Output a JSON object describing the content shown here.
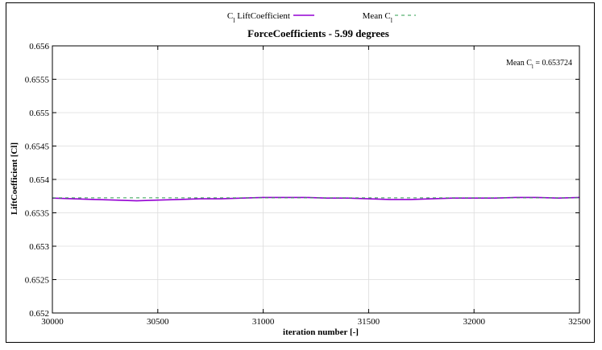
{
  "chart_data": {
    "type": "line",
    "title": "ForceCoefficients - 5.99 degrees",
    "xlabel": "iteration number [-]",
    "ylabel": "LiftCoefficient [Cl]",
    "xlim": [
      30000,
      32500
    ],
    "ylim": [
      0.652,
      0.656
    ],
    "grid": true,
    "legend_position": "top-center",
    "x_ticks": [
      "30000",
      "30500",
      "31000",
      "31500",
      "32000",
      "32500"
    ],
    "y_ticks": [
      "0.652",
      "0.6525",
      "0.653",
      "0.6535",
      "0.654",
      "0.6545",
      "0.655",
      "0.6555",
      "0.656"
    ],
    "series": [
      {
        "name": "C_l LiftCoefficient",
        "legend_main": "C",
        "legend_sub": "l",
        "legend_rest": " LiftCoefficient",
        "color": "#9400d3",
        "style": "solid",
        "x": [
          30000,
          30100,
          30200,
          30300,
          30400,
          30500,
          30600,
          30700,
          30800,
          30900,
          31000,
          31100,
          31200,
          31300,
          31400,
          31500,
          31600,
          31700,
          31800,
          31900,
          32000,
          32100,
          32200,
          32300,
          32400,
          32500
        ],
        "y": [
          0.65372,
          0.65371,
          0.6537,
          0.65369,
          0.65368,
          0.65369,
          0.6537,
          0.65371,
          0.65371,
          0.65372,
          0.65373,
          0.65373,
          0.65373,
          0.65372,
          0.65372,
          0.65371,
          0.6537,
          0.6537,
          0.65371,
          0.65372,
          0.65372,
          0.65372,
          0.65373,
          0.65373,
          0.65372,
          0.65373
        ]
      },
      {
        "name": "Mean C_l",
        "legend_main": "Mean C",
        "legend_sub": "l",
        "legend_rest": "",
        "color": "#2e9d4e",
        "style": "dashed",
        "x": [
          30000,
          32500
        ],
        "y": [
          0.653724,
          0.653724
        ]
      }
    ],
    "annotation": {
      "main": "Mean C",
      "sub": "l",
      "rest": " = 0.653724"
    }
  }
}
